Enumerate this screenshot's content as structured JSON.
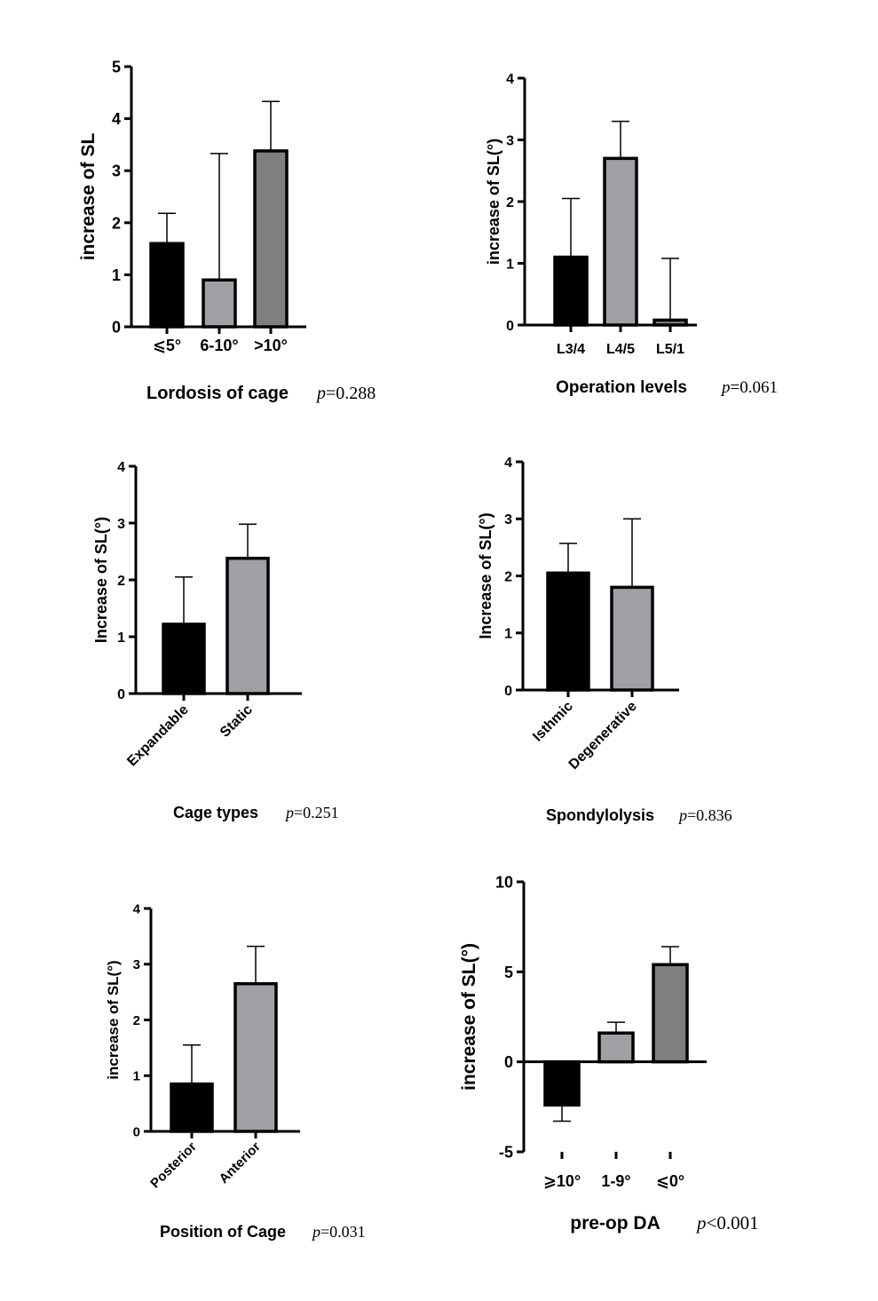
{
  "colors": {
    "black": "#000000",
    "light_gray": "#a0a0a4",
    "dark_gray": "#7f7f7f"
  },
  "chart_data": [
    {
      "type": "bar",
      "ylabel": "increase of SL",
      "xlabel": "Lordosis of cage",
      "p_label": "p",
      "p_value": "=0.288",
      "categories": [
        "⩽5°",
        "6-10°",
        ">10°"
      ],
      "values": [
        1.6,
        0.9,
        3.38
      ],
      "error_upper": [
        2.18,
        3.33,
        4.33
      ],
      "ylim": [
        0,
        5
      ],
      "yticks": [
        "0",
        "1",
        "2",
        "3",
        "4",
        "5"
      ],
      "bar_colors": [
        "black",
        "light_gray",
        "dark_gray"
      ],
      "grid": false
    },
    {
      "type": "bar",
      "ylabel": "increase of SL(°)",
      "xlabel": "Operation levels",
      "p_label": "p",
      "p_value": "=0.061",
      "categories": [
        "L3/4",
        "L4/5",
        "L5/1"
      ],
      "values": [
        1.1,
        2.7,
        0.08
      ],
      "error_upper": [
        2.05,
        3.3,
        1.08
      ],
      "ylim": [
        0,
        4
      ],
      "yticks": [
        "0",
        "1",
        "2",
        "3",
        "4"
      ],
      "bar_colors": [
        "black",
        "light_gray",
        "dark_gray"
      ],
      "grid": false
    },
    {
      "type": "bar",
      "ylabel": "Increase of SL(°)",
      "xlabel": "Cage types",
      "p_label": "p",
      "p_value": "=0.251",
      "categories": [
        "Expandable",
        "Static"
      ],
      "values": [
        1.22,
        2.38
      ],
      "error_upper": [
        2.05,
        2.98
      ],
      "ylim": [
        0,
        4
      ],
      "yticks": [
        "0",
        "1",
        "2",
        "3",
        "4"
      ],
      "bar_colors": [
        "black",
        "light_gray"
      ],
      "grid": false
    },
    {
      "type": "bar",
      "ylabel": "Increase of SL(°)",
      "xlabel": "Spondylolysis",
      "p_label": "p",
      "p_value": "=0.836",
      "categories": [
        "Isthmic",
        "Degenerative"
      ],
      "values": [
        2.05,
        1.8
      ],
      "error_upper": [
        2.57,
        3.0
      ],
      "ylim": [
        0,
        4
      ],
      "yticks": [
        "0",
        "1",
        "2",
        "3",
        "4"
      ],
      "bar_colors": [
        "black",
        "light_gray"
      ],
      "grid": false
    },
    {
      "type": "bar",
      "ylabel": "increase of SL(°)",
      "xlabel": "Position of Cage",
      "p_label": "p",
      "p_value": "=0.031",
      "categories": [
        "Posterior",
        "Anterior"
      ],
      "values": [
        0.85,
        2.65
      ],
      "error_upper": [
        1.55,
        3.32
      ],
      "ylim": [
        0,
        4
      ],
      "yticks": [
        "0",
        "1",
        "2",
        "3",
        "4"
      ],
      "bar_colors": [
        "black",
        "light_gray"
      ],
      "grid": false
    },
    {
      "type": "bar",
      "ylabel": "increase of SL(°)",
      "xlabel": "pre-op DA",
      "p_label": "p",
      "p_value": "<0.001",
      "categories": [
        "⩾10°",
        "1-9°",
        "⩽0°"
      ],
      "values": [
        -2.4,
        1.6,
        5.4
      ],
      "error_upper": [
        -3.3,
        2.2,
        6.4
      ],
      "ylim": [
        -5,
        10
      ],
      "yticks": [
        "-5",
        "0",
        "5",
        "10"
      ],
      "bar_colors": [
        "black",
        "light_gray",
        "dark_gray"
      ],
      "grid": false
    }
  ]
}
